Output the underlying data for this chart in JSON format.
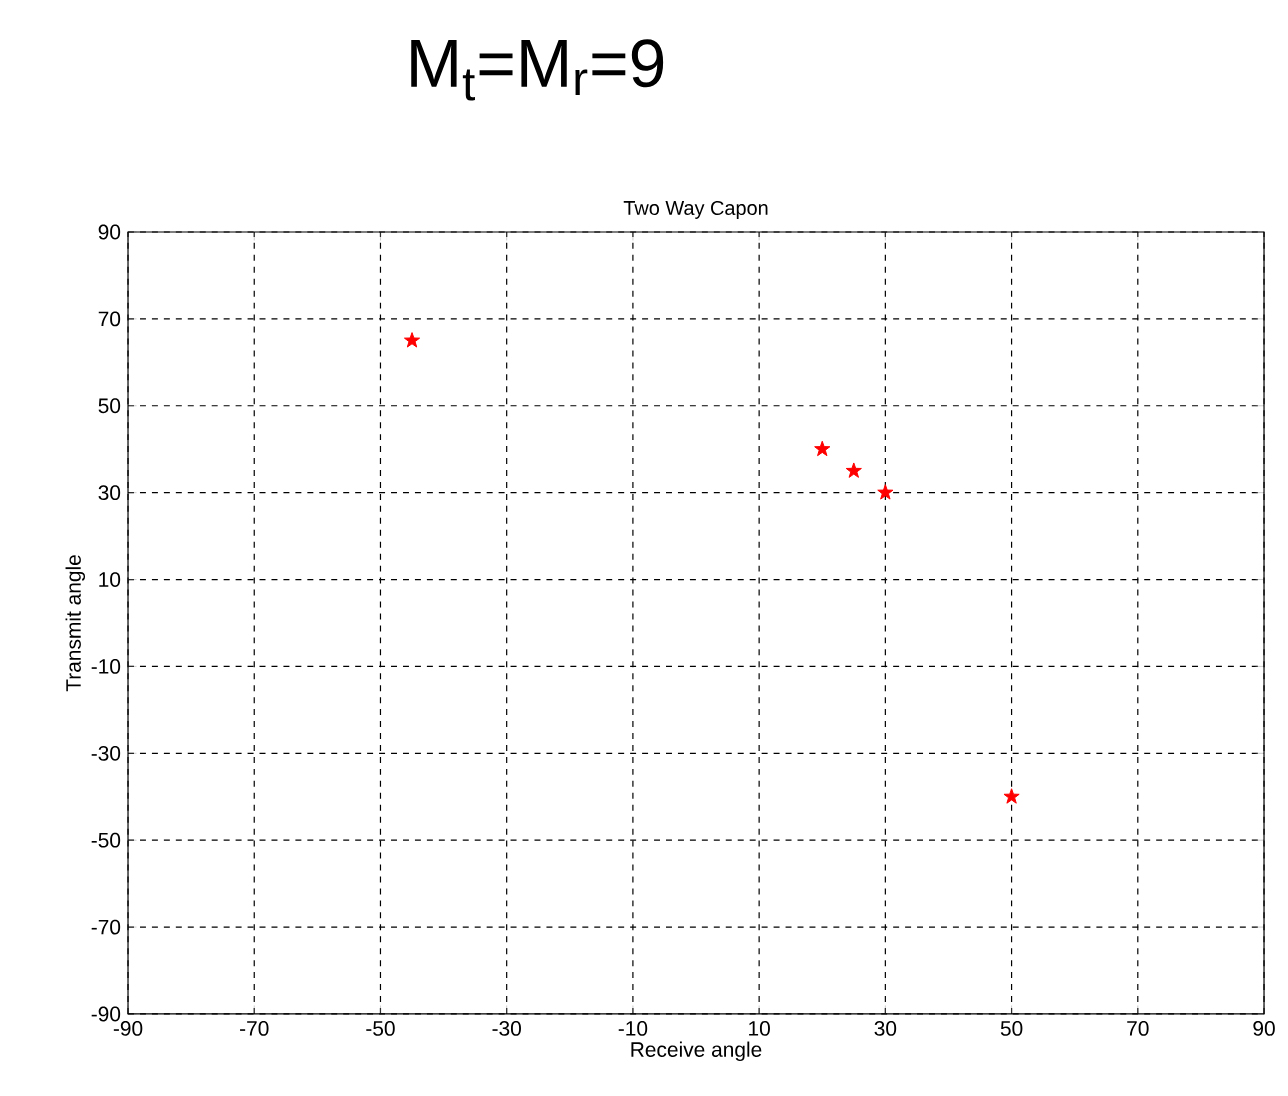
{
  "chart_data": {
    "type": "scatter",
    "title": "M$_{t}$=M$_{r}$=9",
    "subtitle": "Two Way Capon",
    "xlabel": "Receive angle",
    "ylabel": "Transmit angle",
    "x": [
      -45,
      20,
      25,
      30,
      50
    ],
    "series": [
      {
        "color": "#ff0000",
        "values": [
          65,
          40,
          35,
          30,
          -40
        ]
      }
    ],
    "xlim": [
      -90,
      90
    ],
    "ylim": [
      -90,
      90
    ],
    "xticks": [
      -90,
      -70,
      -50,
      -30,
      -10,
      10,
      30,
      50,
      70,
      90
    ],
    "yticks": [
      -90,
      -70,
      -50,
      -30,
      -10,
      10,
      30,
      50,
      70,
      90
    ],
    "grid": true,
    "marker": "star",
    "line_style": "none"
  }
}
